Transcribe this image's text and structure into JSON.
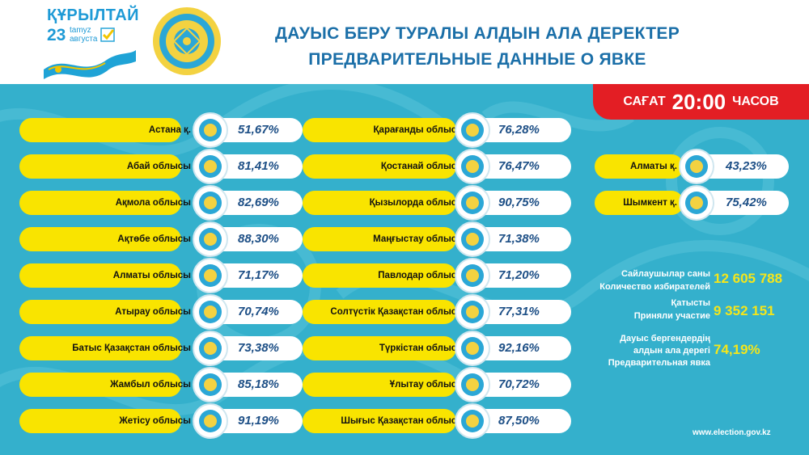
{
  "header": {
    "kurultai_title": "ҚҰРЫЛТАЙ",
    "kurultai_day": "23",
    "kurultai_month_kz": "tamyz",
    "kurultai_month_ru": "августа",
    "title_kz": "ДАУЫС БЕРУ ТУРАЛЫ АЛДЫН АЛА ДЕРЕКТЕР",
    "title_ru": "ПРЕДВАРИТЕЛЬНЫЕ ДАННЫЕ О ЯВКЕ"
  },
  "time_badge": {
    "prefix": "САҒАТ",
    "time": "20:00",
    "suffix": "ЧАСОВ",
    "color": "#e31e24"
  },
  "colors": {
    "panel": "#34b0cc",
    "pill_yellow": "#f9e400",
    "value_blue": "#1d4f86",
    "title_blue": "#1b6fa8",
    "stat_yellow": "#f5e61a"
  },
  "regions_left": [
    {
      "name": "Астана  қ.",
      "turnout": "51,67%",
      "emblem": "astana-emblem"
    },
    {
      "name": "Абай облысы",
      "turnout": "81,41%",
      "emblem": "abai-emblem"
    },
    {
      "name": "Ақмола облысы",
      "turnout": "82,69%",
      "emblem": "akmola-emblem"
    },
    {
      "name": "Ақтөбе облысы",
      "turnout": "88,30%",
      "emblem": "aktobe-emblem"
    },
    {
      "name": "Алматы  облысы",
      "turnout": "71,17%",
      "emblem": "almaty-region-emblem"
    },
    {
      "name": "Атырау  облысы",
      "turnout": "70,74%",
      "emblem": "atyrau-emblem"
    },
    {
      "name": "Батыс Қазақстан облысы",
      "turnout": "73,38%",
      "emblem": "west-kazakhstan-emblem"
    },
    {
      "name": "Жамбыл облысы",
      "turnout": "85,18%",
      "emblem": "zhambyl-emblem"
    },
    {
      "name": "Жетісу облысы",
      "turnout": "91,19%",
      "emblem": "zhetisu-emblem"
    }
  ],
  "regions_middle": [
    {
      "name": "Қарағанды облысы",
      "turnout": "76,28%",
      "emblem": "karaganda-emblem"
    },
    {
      "name": "Қостанай облысы",
      "turnout": "76,47%",
      "emblem": "kostanay-emblem"
    },
    {
      "name": "Қызылорда облысы",
      "turnout": "90,75%",
      "emblem": "kyzylorda-emblem"
    },
    {
      "name": "Маңғыстау облысы",
      "turnout": "71,38%",
      "emblem": "mangystau-emblem"
    },
    {
      "name": "Павлодар облысы",
      "turnout": "71,20%",
      "emblem": "pavlodar-emblem"
    },
    {
      "name": "Солтүстік Қазақстан облысы",
      "turnout": "77,31%",
      "emblem": "north-kazakhstan-emblem"
    },
    {
      "name": "Түркістан облысы",
      "turnout": "92,16%",
      "emblem": "turkistan-emblem"
    },
    {
      "name": "Ұлытау облысы",
      "turnout": "70,72%",
      "emblem": "ulytau-emblem"
    },
    {
      "name": "Шығыс Қазақстан облысы",
      "turnout": "87,50%",
      "emblem": "east-kazakhstan-emblem"
    }
  ],
  "regions_right": [
    {
      "name": "Алматы қ.",
      "turnout": "43,23%",
      "emblem": "almaty-city-emblem"
    },
    {
      "name": "Шымкент қ.",
      "turnout": "75,42%",
      "emblem": "shymkent-emblem"
    }
  ],
  "stats": {
    "voters_kz": "Сайлаушылар саны",
    "voters_ru": "Количество избирателей",
    "voters_value": "12 605 788",
    "participated_kz": "Қатысты",
    "participated_ru": "Приняли участие",
    "participated_value": "9 352 151",
    "turnout_kz1": "Дауыс бергендердің",
    "turnout_kz2": "алдын ала дерегі",
    "turnout_ru": "Предварительная явка",
    "turnout_value": "74,19%"
  },
  "website": "www.election.gov.kz"
}
